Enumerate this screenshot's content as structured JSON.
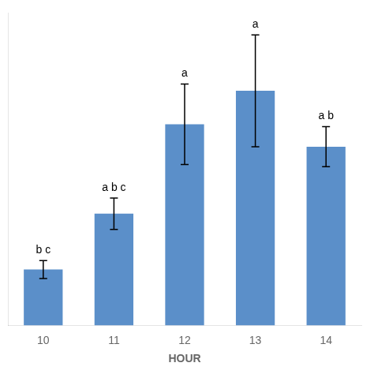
{
  "chart_data": {
    "type": "bar",
    "xlabel": "HOUR",
    "categories": [
      "10",
      "11",
      "12",
      "13",
      "14"
    ],
    "values": [
      2.5,
      5.0,
      9.0,
      10.5,
      8.0
    ],
    "errors": [
      0.4,
      0.7,
      1.8,
      2.5,
      0.9
    ],
    "annotations": [
      "b c",
      "a b c",
      "a",
      "a",
      "a b"
    ],
    "color": "#5b8fc9",
    "ylim": [
      0,
      14
    ],
    "tick_labels": "x",
    "grid": false
  }
}
